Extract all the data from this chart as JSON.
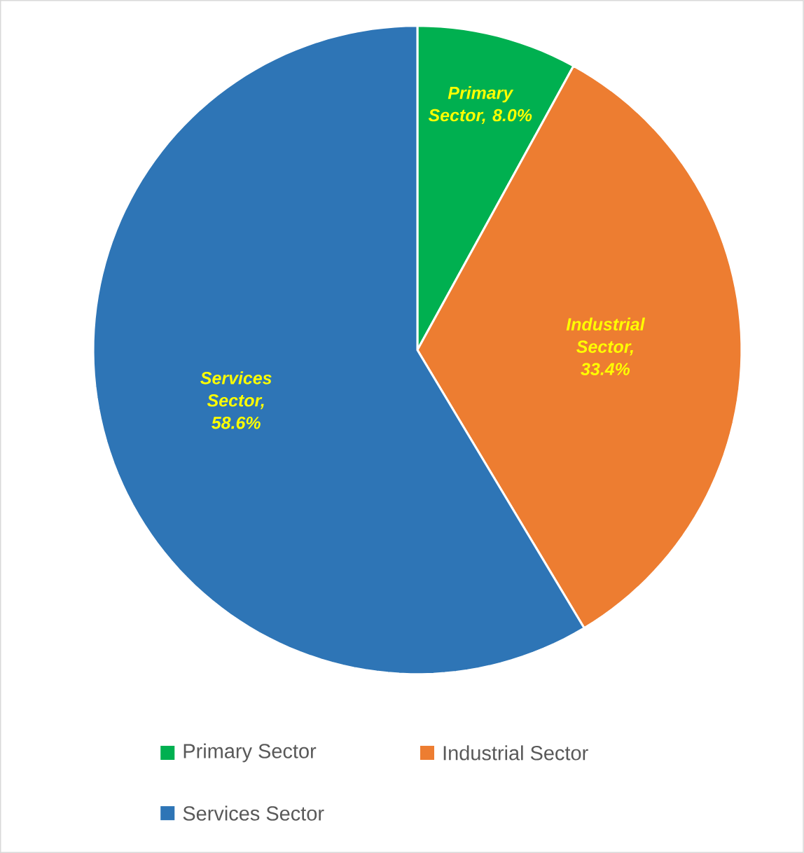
{
  "chart_data": {
    "type": "pie",
    "categories": [
      "Primary Sector",
      "Industrial Sector",
      "Services Sector"
    ],
    "values": [
      8.0,
      33.4,
      58.6
    ],
    "value_labels": [
      "Primary Sector, 8.0%",
      "Industrial Sector, 33.4%",
      "Services Sector, 58.6%"
    ],
    "colors": [
      "#00b050",
      "#ed7d31",
      "#2e75b6"
    ],
    "legend": "bottom"
  }
}
